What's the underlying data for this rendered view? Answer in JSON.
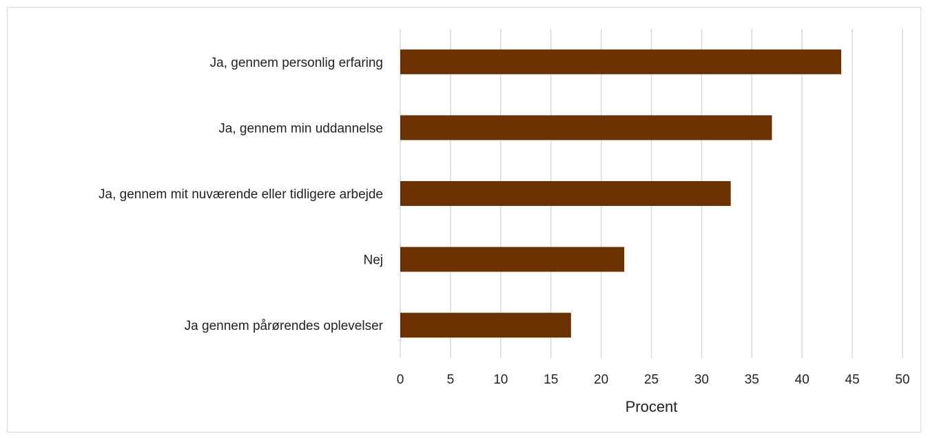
{
  "chart_data": {
    "type": "bar",
    "orientation": "horizontal",
    "categories": [
      "Ja, gennem personlig erfaring",
      "Ja, gennem min uddannelse",
      "Ja, gennem mit nuværende eller tidligere arbejde",
      "Nej",
      "Ja gennem pårørendes oplevelser"
    ],
    "values": [
      43.9,
      37.0,
      32.9,
      22.3,
      17.0
    ],
    "xlabel": "Procent",
    "ylabel": "",
    "xlim": [
      0,
      50
    ],
    "xticks": [
      0,
      5,
      10,
      15,
      20,
      25,
      30,
      35,
      40,
      45,
      50
    ],
    "grid": "vertical",
    "bar_color": "#6b3100",
    "grid_color": "#d9d9d9"
  }
}
